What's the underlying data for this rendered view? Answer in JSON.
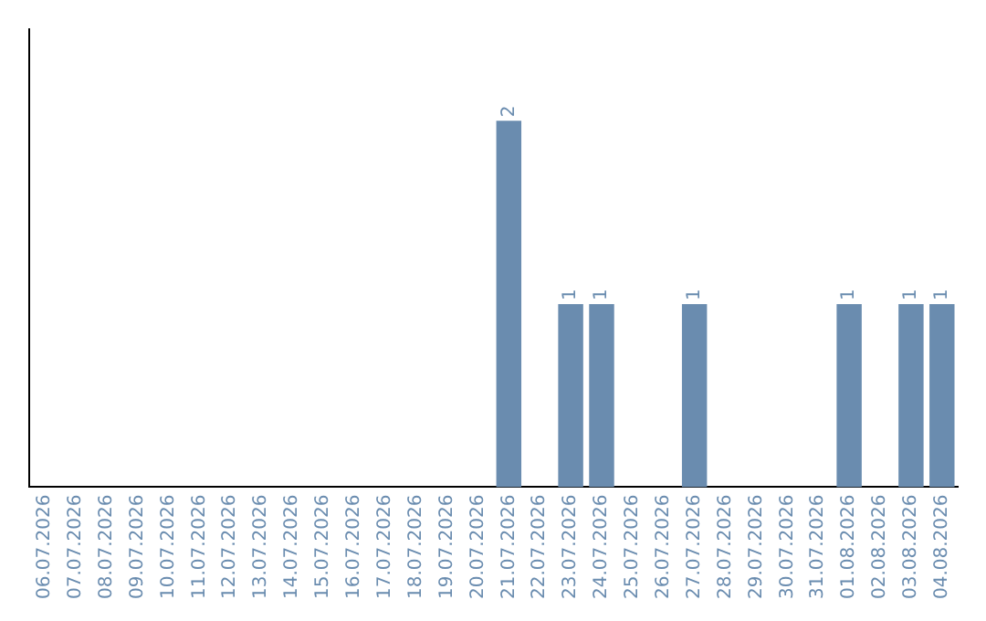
{
  "chart_data": {
    "type": "bar",
    "categories": [
      "06.07.2026",
      "07.07.2026",
      "08.07.2026",
      "09.07.2026",
      "10.07.2026",
      "11.07.2026",
      "12.07.2026",
      "13.07.2026",
      "14.07.2026",
      "15.07.2026",
      "16.07.2026",
      "17.07.2026",
      "18.07.2026",
      "19.07.2026",
      "20.07.2026",
      "21.07.2026",
      "22.07.2026",
      "23.07.2026",
      "24.07.2026",
      "25.07.2026",
      "26.07.2026",
      "27.07.2026",
      "28.07.2026",
      "29.07.2026",
      "30.07.2026",
      "31.07.2026",
      "01.08.2026",
      "02.08.2026",
      "03.08.2026",
      "04.08.2026"
    ],
    "values": [
      null,
      null,
      null,
      null,
      null,
      null,
      null,
      null,
      null,
      null,
      null,
      null,
      null,
      null,
      null,
      2,
      null,
      1,
      1,
      null,
      null,
      1,
      null,
      null,
      null,
      null,
      1,
      null,
      1,
      1
    ],
    "data_labels": true,
    "color": "#6a8caf",
    "grid": false,
    "legend": false,
    "tick_labels": "x"
  }
}
